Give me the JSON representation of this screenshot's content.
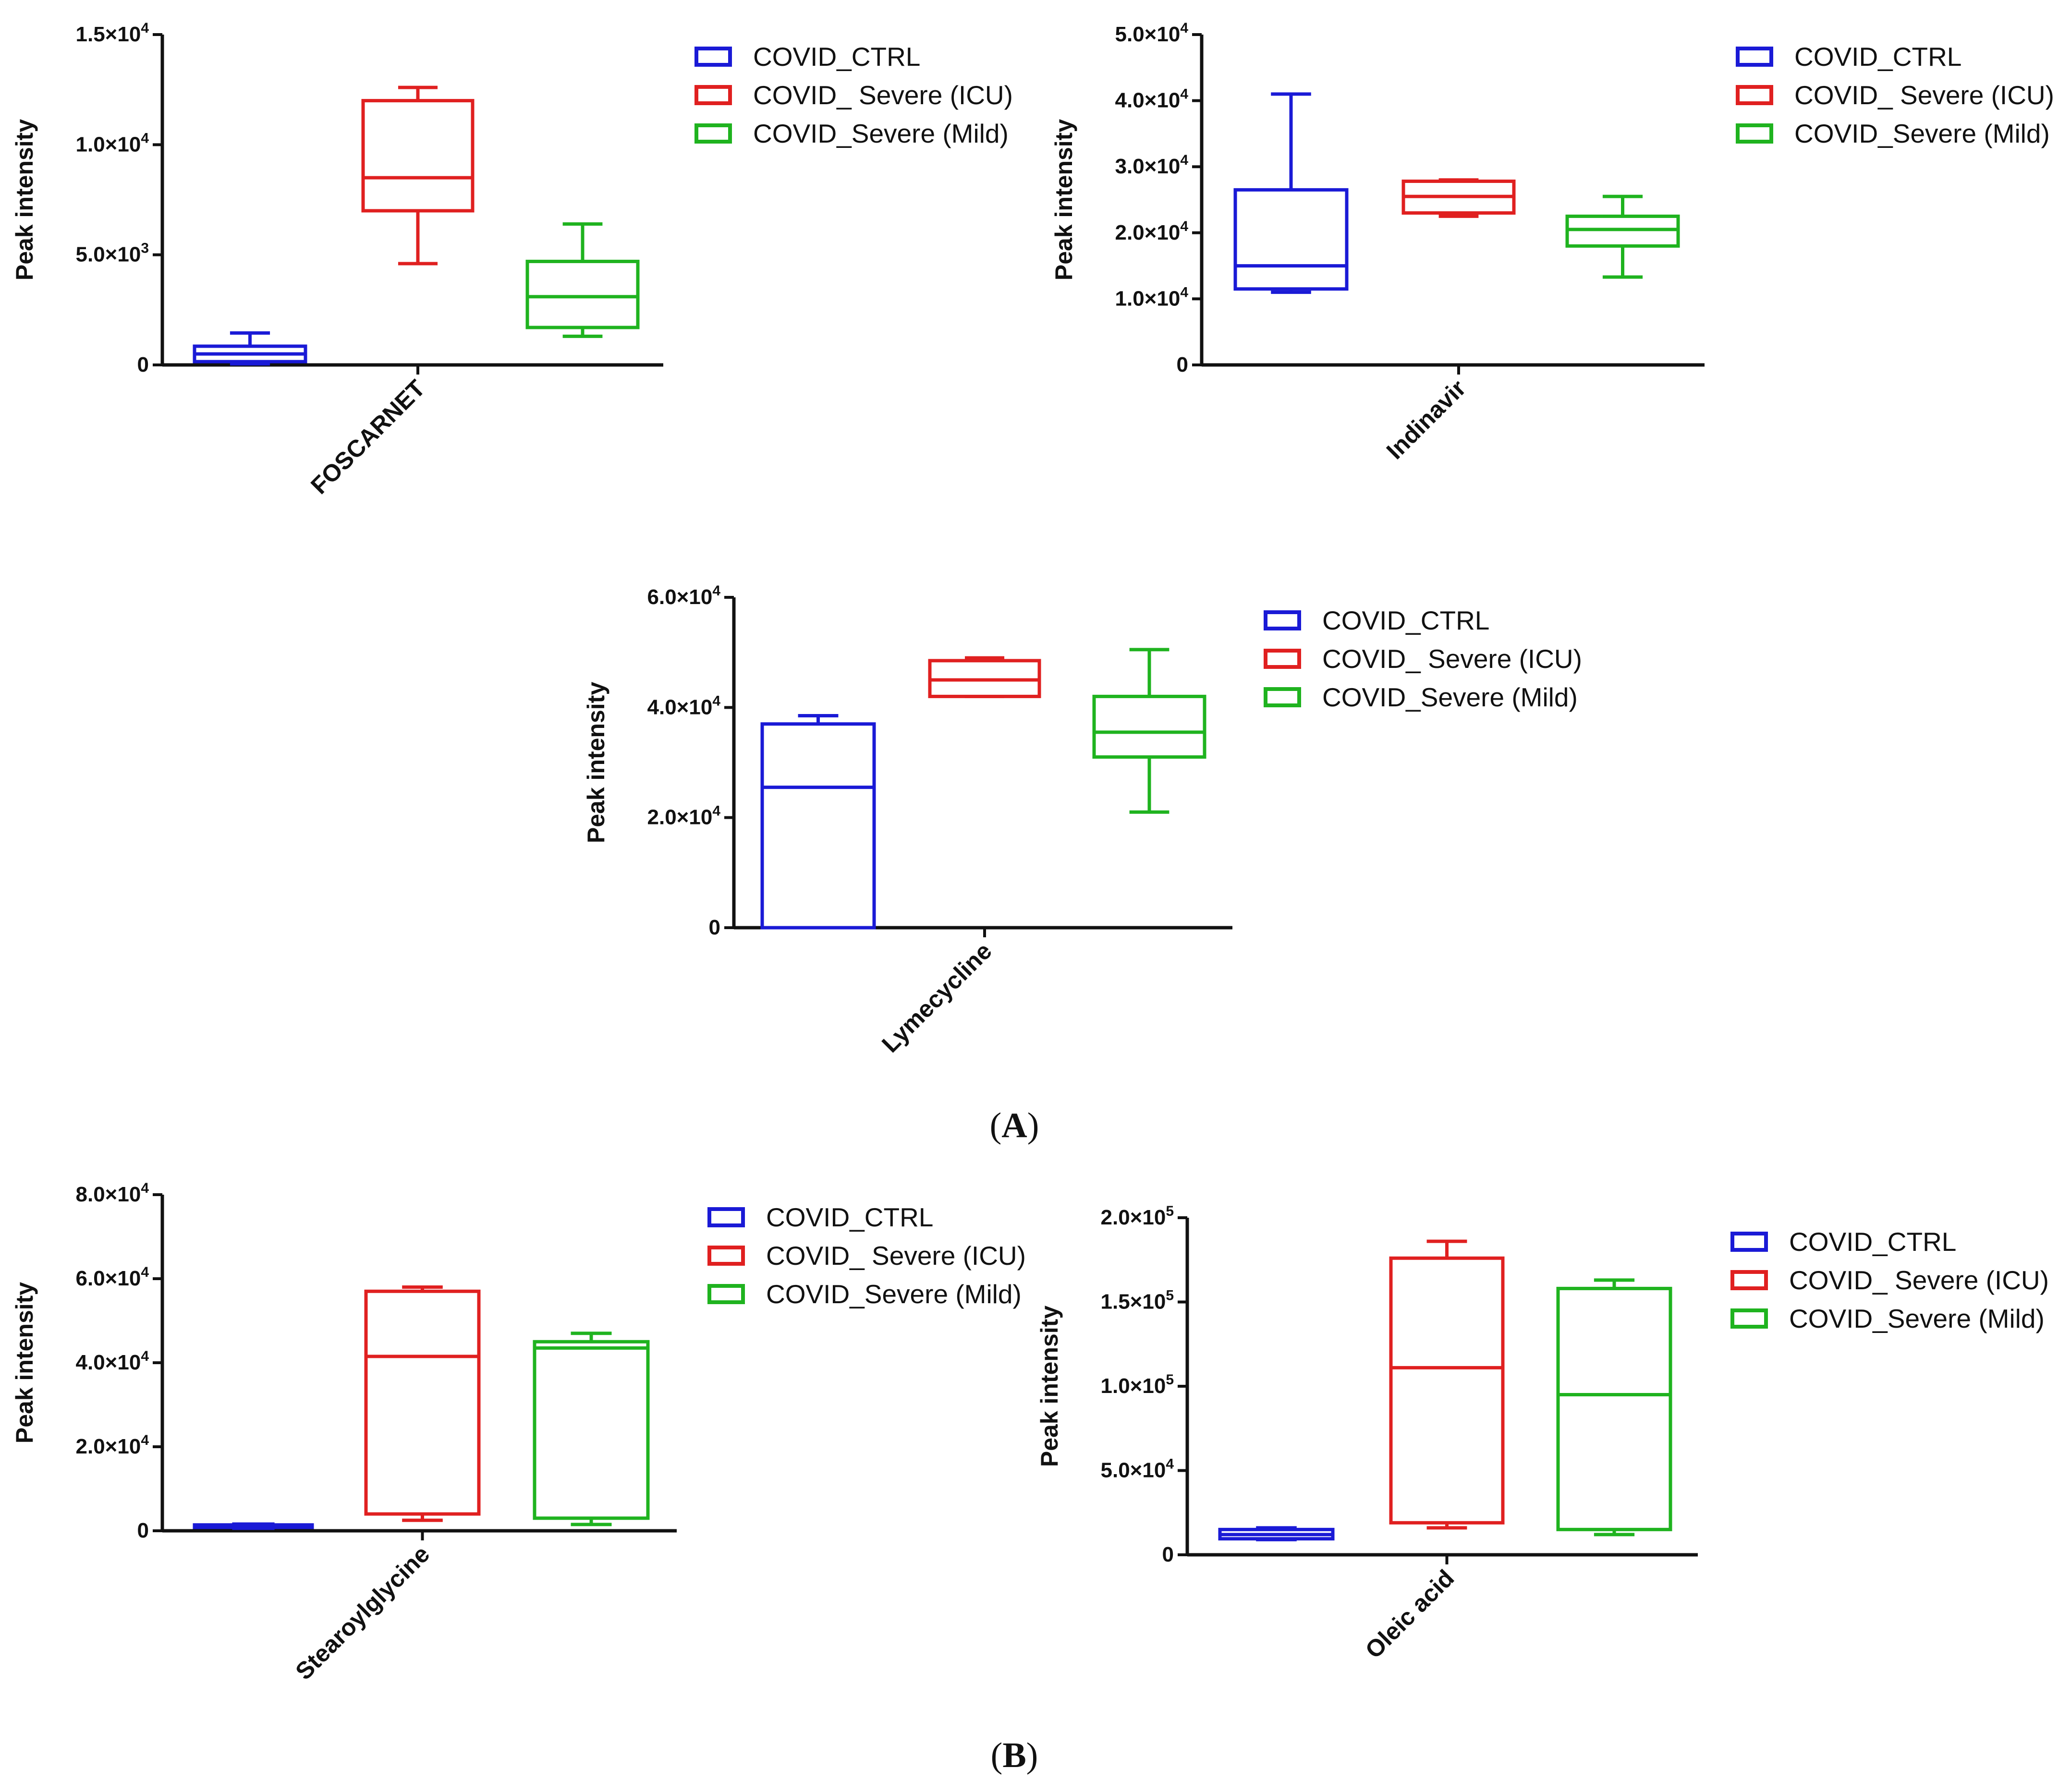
{
  "figure": {
    "panel_labels": [
      {
        "open": "(",
        "letter": "A",
        "close": ")"
      },
      {
        "open": "(",
        "letter": "B",
        "close": ")"
      }
    ]
  },
  "legend": [
    {
      "name": "COVID_CTRL",
      "color": "#1a1ad6"
    },
    {
      "name": "COVID_ Severe (ICU)",
      "color": "#e02020"
    },
    {
      "name": "COVID_Severe (Mild)",
      "color": "#1fb31f"
    }
  ],
  "chart_data": [
    {
      "type": "box",
      "title": "",
      "category": "FOSCARNET",
      "ylabel": "Peak intensity",
      "ylim": [
        0,
        15000
      ],
      "yticks": [
        {
          "value": 0,
          "mantissa": "0",
          "exp": ""
        },
        {
          "value": 5000,
          "mantissa": "5.0×10",
          "exp": "3"
        },
        {
          "value": 10000,
          "mantissa": "1.0×10",
          "exp": "4"
        },
        {
          "value": 15000,
          "mantissa": "1.5×10",
          "exp": "4"
        }
      ],
      "series": [
        {
          "name": "COVID_CTRL",
          "min": 50,
          "q1": 150,
          "median": 500,
          "q3": 850,
          "max": 1450
        },
        {
          "name": "COVID_ Severe (ICU)",
          "min": 4600,
          "q1": 7000,
          "median": 8500,
          "q3": 12000,
          "max": 12600
        },
        {
          "name": "COVID_Severe (Mild)",
          "min": 1300,
          "q1": 1700,
          "median": 3100,
          "q3": 4700,
          "max": 6400
        }
      ]
    },
    {
      "type": "box",
      "title": "",
      "category": "Indinavir",
      "ylabel": "Peak intensity",
      "ylim": [
        0,
        50000
      ],
      "yticks": [
        {
          "value": 0,
          "mantissa": "0",
          "exp": ""
        },
        {
          "value": 10000,
          "mantissa": "1.0×10",
          "exp": "4"
        },
        {
          "value": 20000,
          "mantissa": "2.0×10",
          "exp": "4"
        },
        {
          "value": 30000,
          "mantissa": "3.0×10",
          "exp": "4"
        },
        {
          "value": 40000,
          "mantissa": "4.0×10",
          "exp": "4"
        },
        {
          "value": 50000,
          "mantissa": "5.0×10",
          "exp": "4"
        }
      ],
      "series": [
        {
          "name": "COVID_CTRL",
          "min": 11000,
          "q1": 11500,
          "median": 15000,
          "q3": 26500,
          "max": 41000
        },
        {
          "name": "COVID_ Severe (ICU)",
          "min": 22500,
          "q1": 23000,
          "median": 25500,
          "q3": 27800,
          "max": 28000
        },
        {
          "name": "COVID_Severe (Mild)",
          "min": 13300,
          "q1": 18000,
          "median": 20500,
          "q3": 22500,
          "max": 25500
        }
      ]
    },
    {
      "type": "box",
      "title": "",
      "category": "Lymecycline",
      "ylabel": "Peak intensity",
      "ylim": [
        0,
        60000
      ],
      "yticks": [
        {
          "value": 0,
          "mantissa": "0",
          "exp": ""
        },
        {
          "value": 20000,
          "mantissa": "2.0×10",
          "exp": "4"
        },
        {
          "value": 40000,
          "mantissa": "4.0×10",
          "exp": "4"
        },
        {
          "value": 60000,
          "mantissa": "6.0×10",
          "exp": "4"
        }
      ],
      "series": [
        {
          "name": "COVID_CTRL",
          "min": 0,
          "q1": 0,
          "median": 25500,
          "q3": 37000,
          "max": 38500
        },
        {
          "name": "COVID_ Severe (ICU)",
          "min": 42000,
          "q1": 42000,
          "median": 45000,
          "q3": 48500,
          "max": 49000
        },
        {
          "name": "COVID_Severe (Mild)",
          "min": 21000,
          "q1": 31000,
          "median": 35500,
          "q3": 42000,
          "max": 50500
        }
      ]
    },
    {
      "type": "box",
      "title": "",
      "category": "Stearoylglycine",
      "ylabel": "Peak intensity",
      "ylim": [
        0,
        80000
      ],
      "yticks": [
        {
          "value": 0,
          "mantissa": "0",
          "exp": ""
        },
        {
          "value": 20000,
          "mantissa": "2.0×10",
          "exp": "4"
        },
        {
          "value": 40000,
          "mantissa": "4.0×10",
          "exp": "4"
        },
        {
          "value": 60000,
          "mantissa": "6.0×10",
          "exp": "4"
        },
        {
          "value": 80000,
          "mantissa": "8.0×10",
          "exp": "4"
        }
      ],
      "series": [
        {
          "name": "COVID_CTRL",
          "min": 600,
          "q1": 800,
          "median": 1100,
          "q3": 1400,
          "max": 1600
        },
        {
          "name": "COVID_ Severe (ICU)",
          "min": 2500,
          "q1": 4000,
          "median": 41500,
          "q3": 57000,
          "max": 58000
        },
        {
          "name": "COVID_Severe (Mild)",
          "min": 1500,
          "q1": 3000,
          "median": 43500,
          "q3": 45000,
          "max": 47000
        }
      ]
    },
    {
      "type": "box",
      "title": "",
      "category": "Oleic acid",
      "ylabel": "Peak intensity",
      "ylim": [
        0,
        200000
      ],
      "yticks": [
        {
          "value": 0,
          "mantissa": "0",
          "exp": ""
        },
        {
          "value": 50000,
          "mantissa": "5.0×10",
          "exp": "4"
        },
        {
          "value": 100000,
          "mantissa": "1.0×10",
          "exp": "5"
        },
        {
          "value": 150000,
          "mantissa": "1.5×10",
          "exp": "5"
        },
        {
          "value": 200000,
          "mantissa": "2.0×10",
          "exp": "5"
        }
      ],
      "series": [
        {
          "name": "COVID_CTRL",
          "min": 9000,
          "q1": 9500,
          "median": 12000,
          "q3": 15000,
          "max": 16000
        },
        {
          "name": "COVID_ Severe (ICU)",
          "min": 16000,
          "q1": 19000,
          "median": 111000,
          "q3": 176000,
          "max": 186000
        },
        {
          "name": "COVID_Severe (Mild)",
          "min": 12000,
          "q1": 15000,
          "median": 95000,
          "q3": 158000,
          "max": 163000
        }
      ]
    }
  ]
}
